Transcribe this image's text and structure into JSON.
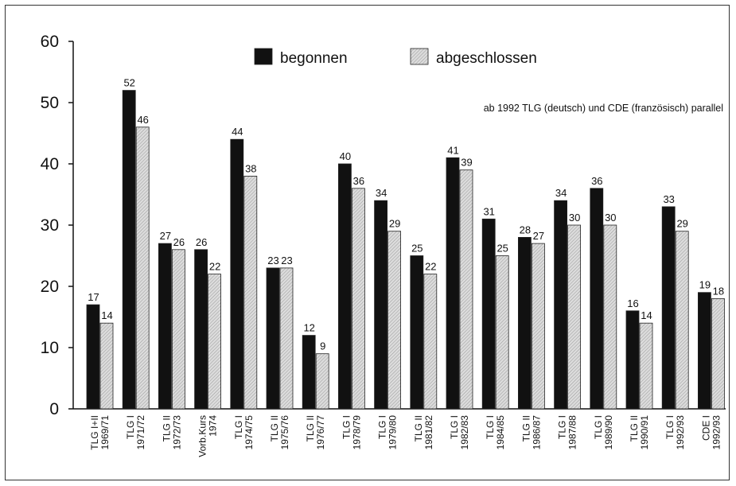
{
  "chart_data": {
    "type": "bar",
    "title": "",
    "xlabel": "",
    "ylabel": "",
    "ylim": [
      0,
      60
    ],
    "yticks": [
      0,
      10,
      20,
      30,
      40,
      50,
      60
    ],
    "grid": false,
    "legend_position": "top-center",
    "note": "ab 1992 TLG (deutsch) und CDE (französisch) parallel",
    "categories": [
      [
        "TLG I+II",
        "1969/71"
      ],
      [
        "TLG I",
        "1971/72"
      ],
      [
        "TLG II",
        "1972/73"
      ],
      [
        "Vorb.Kurs",
        "1974"
      ],
      [
        "TLG I",
        "1974/75"
      ],
      [
        "TLG II",
        "1975/76"
      ],
      [
        "TLG II",
        "1976/77"
      ],
      [
        "TLG I",
        "1978/79"
      ],
      [
        "TLG I",
        "1979/80"
      ],
      [
        "TLG II",
        "1981/82"
      ],
      [
        "TLG I",
        "1982/83"
      ],
      [
        "TLG I",
        "1984/85"
      ],
      [
        "TLG II",
        "1986/87"
      ],
      [
        "TLG I",
        "1987/88"
      ],
      [
        "TLG I",
        "1989/90"
      ],
      [
        "TLG II",
        "1990/91"
      ],
      [
        "TLG I",
        "1992/93"
      ],
      [
        "CDE I",
        "1992/93"
      ]
    ],
    "series": [
      {
        "name": "begonnen",
        "color": "#111111",
        "values": [
          17,
          52,
          27,
          26,
          44,
          23,
          12,
          40,
          34,
          25,
          41,
          31,
          28,
          34,
          36,
          16,
          33,
          19
        ]
      },
      {
        "name": "abgeschlossen",
        "color": "#cccccc",
        "values": [
          14,
          46,
          26,
          22,
          38,
          23,
          9,
          36,
          29,
          22,
          39,
          25,
          27,
          30,
          30,
          14,
          29,
          18
        ]
      }
    ]
  }
}
